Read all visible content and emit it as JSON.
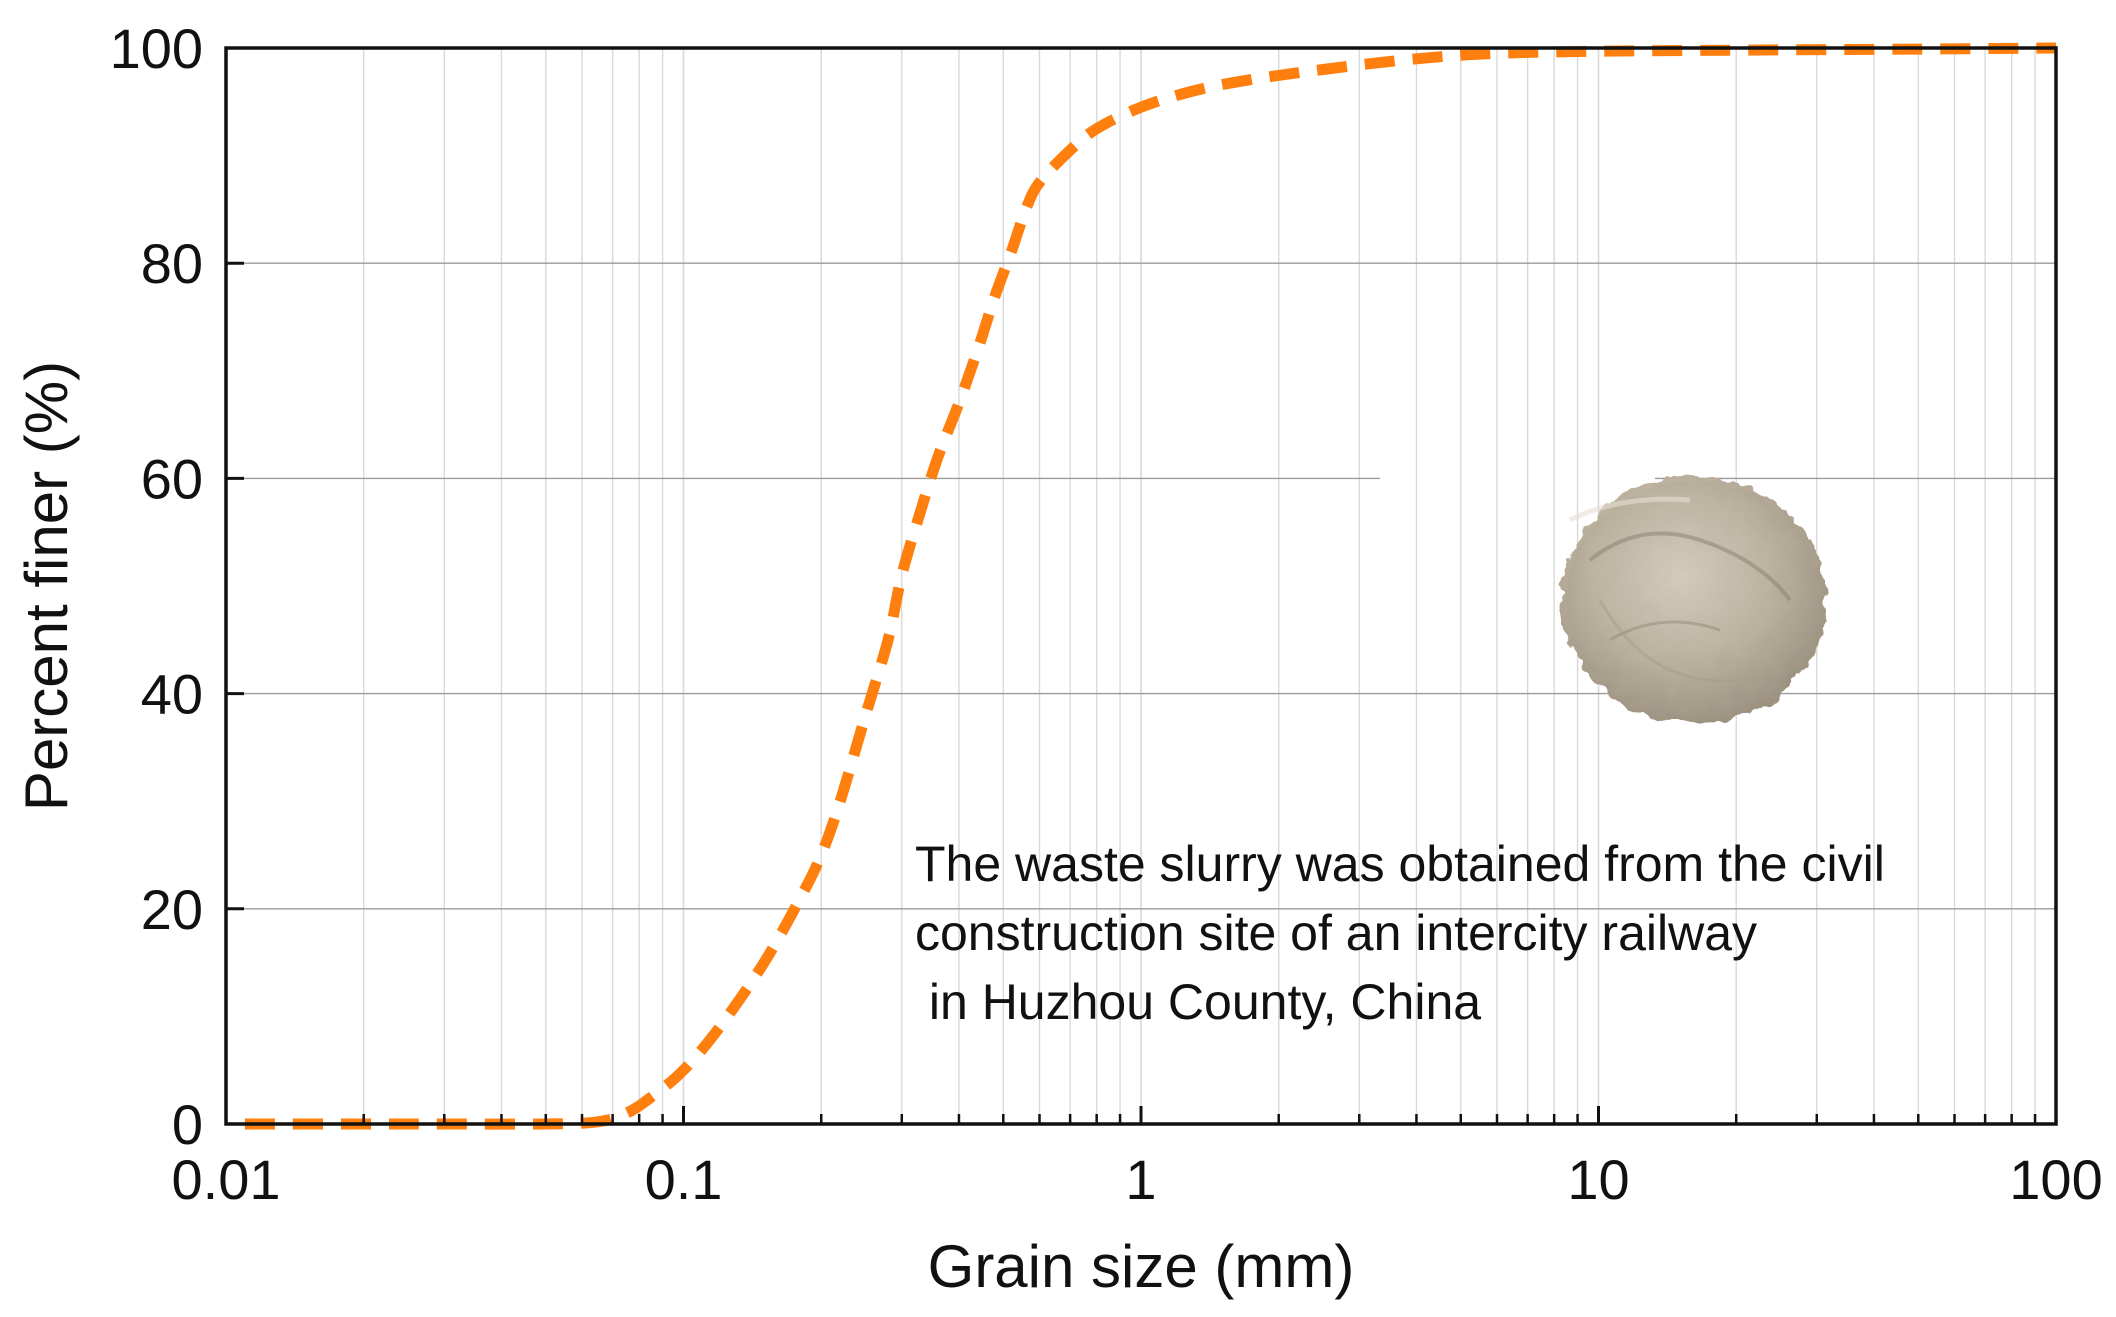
{
  "chart_data": {
    "type": "line",
    "xlabel": "Grain size (mm)",
    "ylabel": "Percent finer (%)",
    "xscale": "log",
    "xlim": [
      0.01,
      100
    ],
    "ylim": [
      0,
      100
    ],
    "xticks": [
      0.01,
      0.1,
      1,
      10,
      100
    ],
    "xtick_labels": [
      "0.01",
      "0.1",
      "1",
      "10",
      "100"
    ],
    "yticks": [
      0,
      20,
      40,
      60,
      80,
      100
    ],
    "ytick_labels": [
      "0",
      "20",
      "40",
      "60",
      "80",
      "100"
    ],
    "grid": "on (major horizontal lines, minor log-spaced vertical lines)",
    "legend": "none",
    "series": [
      {
        "line_style": "dashed",
        "color": "#FF7F0E",
        "x": [
          0.011,
          0.02,
          0.03,
          0.05,
          0.065,
          0.075,
          0.085,
          0.1,
          0.12,
          0.15,
          0.18,
          0.2,
          0.22,
          0.25,
          0.28,
          0.3,
          0.33,
          0.36,
          0.4,
          0.44,
          0.48,
          0.52,
          0.56,
          0.6,
          0.7,
          0.8,
          1.0,
          1.3,
          1.7,
          2.5,
          4,
          6,
          10,
          20,
          50,
          100
        ],
        "y": [
          0,
          0,
          0,
          0,
          0.2,
          1.0,
          2.5,
          5,
          9,
          15,
          21,
          25,
          30,
          38,
          45,
          51,
          57,
          62,
          67,
          72,
          77,
          81,
          85,
          87.5,
          90.5,
          92.5,
          94.5,
          96,
          97,
          98,
          99,
          99.5,
          99.7,
          99.8,
          99.9,
          100
        ]
      }
    ],
    "annotations": [
      {
        "lines": [
          "The waste slurry was obtained from the civil",
          "construction site of an intercity railway",
          " in Huzhou County, China"
        ]
      }
    ],
    "inset_image": "slurry-sample-photo"
  },
  "colors": {
    "series": "#FF7F0E",
    "axes": "#111111",
    "major_grid": "#9a9a9a",
    "minor_grid": "#d9d9d9"
  }
}
